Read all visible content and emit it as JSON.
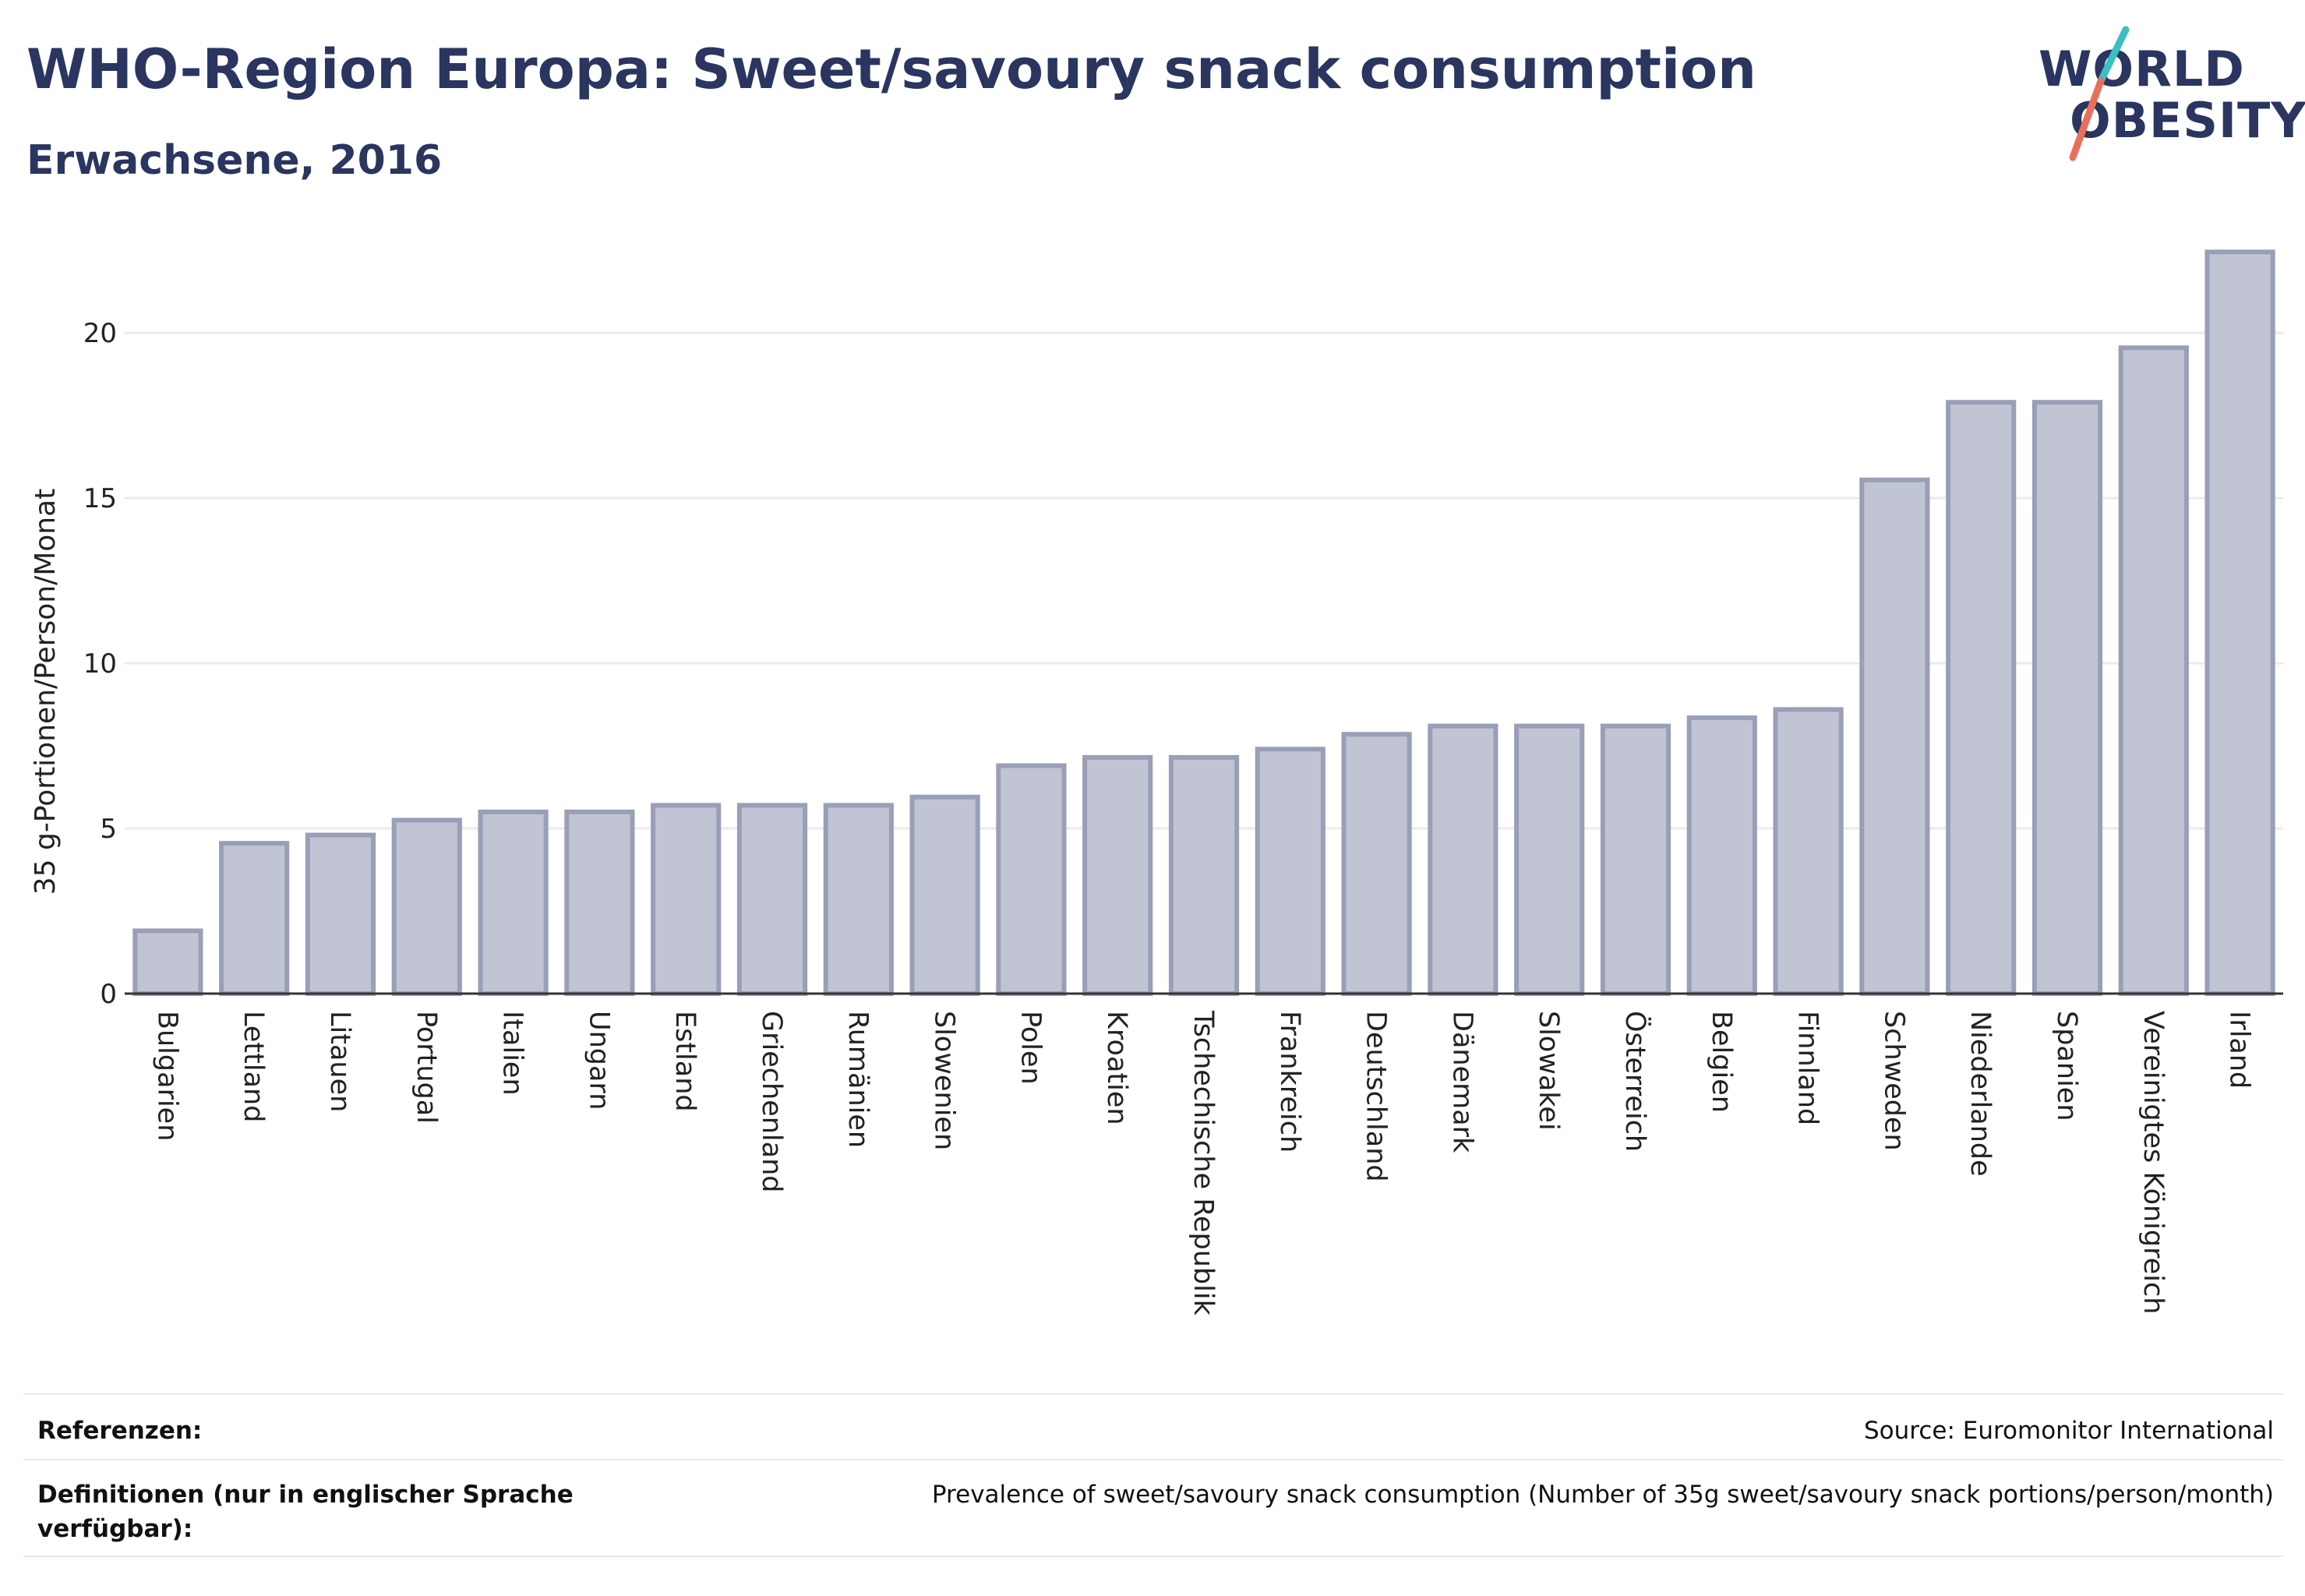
{
  "header": {
    "title": "WHO-Region Europa: Sweet/savoury snack consumption",
    "subtitle": "Erwachsene, 2016"
  },
  "logo": {
    "line1": "WORLD",
    "line2": "OBESITY",
    "colors": {
      "text": "#2a3560",
      "slash_top": "#3bbfbf",
      "slash_bottom": "#e8705a"
    }
  },
  "chart_data": {
    "type": "bar",
    "title": "WHO-Region Europa: Sweet/savoury snack consumption",
    "subtitle": "Erwachsene, 2016",
    "ylabel": "35 g-Portionen/Person/Monat",
    "xlabel": "",
    "ylim": [
      0,
      23
    ],
    "yticks": [
      0,
      5,
      10,
      15,
      20
    ],
    "grid": true,
    "categories": [
      "Bulgarien",
      "Lettland",
      "Litauen",
      "Portugal",
      "Italien",
      "Ungarn",
      "Estland",
      "Griechenland",
      "Rumänien",
      "Slowenien",
      "Polen",
      "Kroatien",
      "Tschechische Republik",
      "Frankreich",
      "Deutschland",
      "Dänemark",
      "Slowakei",
      "Österreich",
      "Belgien",
      "Finnland",
      "Schweden",
      "Niederlande",
      "Spanien",
      "Vereinigtes Königreich",
      "Irland"
    ],
    "values": [
      1.9,
      4.55,
      4.8,
      5.25,
      5.5,
      5.5,
      5.7,
      5.7,
      5.7,
      5.95,
      6.9,
      7.15,
      7.15,
      7.4,
      7.85,
      8.1,
      8.1,
      8.1,
      8.35,
      8.6,
      15.55,
      17.9,
      17.9,
      19.55,
      22.45
    ],
    "colors": {
      "bar_fill": "#c1c4d3",
      "bar_stroke": "#9a9fb8",
      "axis": "#333333",
      "grid": "#ebebeb"
    }
  },
  "footer": {
    "references_label": "Referenzen:",
    "references_value": "Source: Euromonitor International",
    "definitions_label_line1": "Definitionen (nur in englischer Sprache",
    "definitions_label_line2": "verfügbar):",
    "definitions_value": "Prevalence of sweet/savoury snack consumption (Number of 35g sweet/savoury snack portions/person/month)"
  }
}
